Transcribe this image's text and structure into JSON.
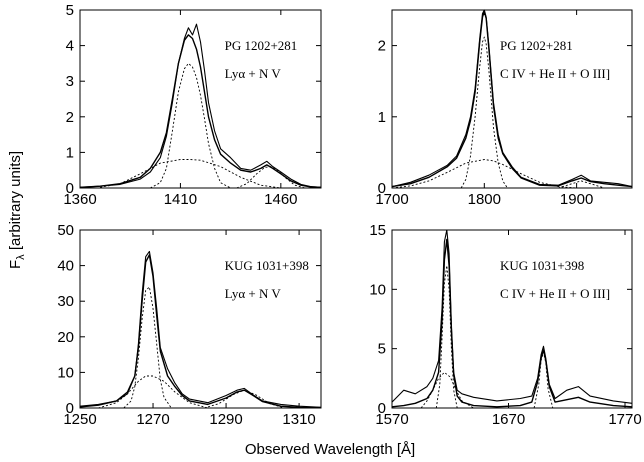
{
  "figure": {
    "ylabel_main": "F",
    "ylabel_sub": "λ",
    "ylabel_rest": " [arbitrary units]",
    "xlabel": "Observed Wavelength [Å]"
  },
  "chart_data": [
    {
      "type": "line",
      "title": "",
      "annotations": [
        "PG 1202+281",
        "Lyα + N V"
      ],
      "xlim": [
        1360,
        1480
      ],
      "ylim": [
        0,
        5
      ],
      "xticks": [
        1360,
        1410,
        1460
      ],
      "yticks": [
        0,
        1,
        2,
        3,
        4,
        5
      ],
      "series": [
        {
          "style": "observed",
          "x": [
            1360,
            1370,
            1380,
            1390,
            1395,
            1400,
            1403,
            1406,
            1409,
            1412,
            1414,
            1416,
            1418,
            1420,
            1422,
            1424,
            1427,
            1430,
            1435,
            1440,
            1445,
            1450,
            1453,
            1456,
            1460,
            1465,
            1470,
            1475,
            1480
          ],
          "y": [
            0.02,
            0.05,
            0.1,
            0.25,
            0.45,
            0.85,
            1.45,
            2.4,
            3.5,
            4.2,
            4.5,
            4.3,
            4.6,
            4.1,
            3.3,
            2.4,
            1.6,
            1.1,
            0.85,
            0.55,
            0.5,
            0.65,
            0.75,
            0.6,
            0.45,
            0.25,
            0.1,
            0.04,
            0.02
          ]
        },
        {
          "style": "fit-total",
          "x": [
            1360,
            1370,
            1380,
            1390,
            1395,
            1400,
            1403,
            1406,
            1409,
            1412,
            1414,
            1416,
            1418,
            1420,
            1422,
            1424,
            1427,
            1430,
            1435,
            1440,
            1445,
            1450,
            1453,
            1456,
            1460,
            1465,
            1470,
            1475,
            1480
          ],
          "y": [
            0.02,
            0.05,
            0.12,
            0.3,
            0.55,
            1.0,
            1.55,
            2.5,
            3.5,
            4.15,
            4.3,
            4.2,
            3.9,
            3.4,
            2.7,
            2.0,
            1.35,
            0.95,
            0.7,
            0.5,
            0.45,
            0.55,
            0.65,
            0.55,
            0.4,
            0.2,
            0.08,
            0.03,
            0.02
          ]
        },
        {
          "style": "component-narrow",
          "x": [
            1395,
            1400,
            1403,
            1406,
            1409,
            1412,
            1414,
            1416,
            1418,
            1420,
            1422,
            1424,
            1427,
            1430,
            1435
          ],
          "y": [
            0.0,
            0.15,
            0.55,
            1.6,
            2.7,
            3.35,
            3.5,
            3.4,
            3.1,
            2.6,
            1.95,
            1.25,
            0.55,
            0.15,
            0.0
          ]
        },
        {
          "style": "component-broad",
          "x": [
            1370,
            1380,
            1390,
            1400,
            1410,
            1415,
            1420,
            1430,
            1440,
            1450,
            1460
          ],
          "y": [
            0.02,
            0.12,
            0.4,
            0.7,
            0.8,
            0.8,
            0.78,
            0.6,
            0.3,
            0.08,
            0.0
          ]
        },
        {
          "style": "component-nv",
          "x": [
            1438,
            1443,
            1448,
            1452,
            1455,
            1458,
            1462,
            1467,
            1472
          ],
          "y": [
            0.0,
            0.12,
            0.4,
            0.58,
            0.6,
            0.52,
            0.3,
            0.08,
            0.0
          ]
        }
      ]
    },
    {
      "type": "line",
      "title": "",
      "annotations": [
        "PG 1202+281",
        "C IV + He II + O III]"
      ],
      "xlim": [
        1700,
        1960
      ],
      "ylim": [
        0,
        2.5
      ],
      "xticks": [
        1700,
        1800,
        1900
      ],
      "yticks": [
        0,
        1,
        2
      ],
      "series": [
        {
          "style": "observed",
          "x": [
            1700,
            1720,
            1740,
            1760,
            1770,
            1780,
            1785,
            1790,
            1795,
            1798,
            1800,
            1802,
            1805,
            1810,
            1815,
            1820,
            1830,
            1840,
            1860,
            1880,
            1895,
            1905,
            1915,
            1930,
            1945,
            1960
          ],
          "y": [
            0.02,
            0.08,
            0.18,
            0.32,
            0.45,
            0.75,
            1.0,
            1.4,
            2.1,
            2.45,
            2.5,
            2.4,
            2.0,
            1.2,
            0.75,
            0.5,
            0.3,
            0.15,
            0.05,
            0.04,
            0.12,
            0.18,
            0.1,
            0.08,
            0.06,
            0.02
          ]
        },
        {
          "style": "fit-total",
          "x": [
            1700,
            1720,
            1740,
            1760,
            1770,
            1780,
            1785,
            1790,
            1795,
            1798,
            1800,
            1802,
            1805,
            1810,
            1815,
            1820,
            1830,
            1840,
            1860,
            1880,
            1895,
            1905,
            1915,
            1930,
            1945,
            1960
          ],
          "y": [
            0.02,
            0.06,
            0.15,
            0.3,
            0.42,
            0.7,
            0.95,
            1.35,
            2.05,
            2.4,
            2.48,
            2.38,
            1.95,
            1.15,
            0.7,
            0.48,
            0.28,
            0.14,
            0.04,
            0.03,
            0.1,
            0.14,
            0.09,
            0.06,
            0.04,
            0.02
          ]
        },
        {
          "style": "component-narrow",
          "x": [
            1775,
            1780,
            1785,
            1790,
            1795,
            1798,
            1800,
            1802,
            1805,
            1810,
            1815,
            1820,
            1825
          ],
          "y": [
            0.0,
            0.12,
            0.45,
            1.0,
            1.7,
            2.05,
            2.12,
            2.02,
            1.65,
            0.85,
            0.35,
            0.1,
            0.0
          ]
        },
        {
          "style": "component-broad",
          "x": [
            1700,
            1720,
            1740,
            1760,
            1780,
            1800,
            1810,
            1820,
            1840,
            1860,
            1880,
            1900
          ],
          "y": [
            0.0,
            0.03,
            0.1,
            0.22,
            0.35,
            0.4,
            0.38,
            0.33,
            0.2,
            0.08,
            0.02,
            0.0
          ]
        },
        {
          "style": "component-heii",
          "x": [
            1880,
            1895,
            1905,
            1915,
            1930
          ],
          "y": [
            0.0,
            0.06,
            0.1,
            0.06,
            0.0
          ]
        }
      ]
    },
    {
      "type": "line",
      "title": "",
      "annotations": [
        "KUG 1031+398",
        "Lyα + N V"
      ],
      "xlim": [
        1250,
        1316
      ],
      "ylim": [
        0,
        50
      ],
      "xticks": [
        1250,
        1270,
        1290,
        1310
      ],
      "yticks": [
        0,
        10,
        20,
        30,
        40,
        50
      ],
      "series": [
        {
          "style": "observed",
          "x": [
            1250,
            1255,
            1260,
            1263,
            1265,
            1266,
            1267,
            1268,
            1269,
            1270,
            1271,
            1272,
            1274,
            1276,
            1278,
            1280,
            1285,
            1290,
            1293,
            1295,
            1297,
            1300,
            1305,
            1310,
            1316
          ],
          "y": [
            0.5,
            1.0,
            2.0,
            4.0,
            9.0,
            18.0,
            32.0,
            42.5,
            44.0,
            38.0,
            28.0,
            17.0,
            11.0,
            7.0,
            4.0,
            2.5,
            1.5,
            3.5,
            5.0,
            5.5,
            4.0,
            2.0,
            1.0,
            0.5,
            0.2
          ]
        },
        {
          "style": "fit-total",
          "x": [
            1250,
            1255,
            1260,
            1263,
            1265,
            1266,
            1267,
            1268,
            1269,
            1270,
            1271,
            1272,
            1274,
            1276,
            1278,
            1280,
            1285,
            1290,
            1293,
            1295,
            1297,
            1300,
            1305,
            1310,
            1316
          ],
          "y": [
            0.3,
            0.8,
            2.0,
            4.5,
            9.0,
            17.0,
            30.0,
            41.0,
            43.0,
            37.0,
            26.0,
            16.0,
            9.0,
            6.0,
            3.5,
            2.0,
            1.0,
            2.8,
            4.5,
            5.0,
            3.8,
            1.8,
            0.5,
            0.2,
            0.1
          ]
        },
        {
          "style": "component-narrow",
          "x": [
            1262,
            1264,
            1265,
            1266,
            1267,
            1268,
            1269,
            1270,
            1271,
            1272,
            1273,
            1275
          ],
          "y": [
            0.0,
            2.0,
            6.0,
            14.0,
            25.0,
            33.0,
            34.0,
            28.0,
            18.0,
            8.0,
            3.0,
            0.0
          ]
        },
        {
          "style": "component-broad",
          "x": [
            1255,
            1260,
            1263,
            1266,
            1268,
            1270,
            1273,
            1276,
            1280,
            1285
          ],
          "y": [
            0.0,
            1.5,
            4.0,
            7.5,
            9.0,
            9.0,
            7.5,
            4.5,
            1.5,
            0.0
          ]
        },
        {
          "style": "component-nv",
          "x": [
            1284,
            1288,
            1292,
            1295,
            1298,
            1302,
            1306
          ],
          "y": [
            0.0,
            1.2,
            3.8,
            5.0,
            3.8,
            1.2,
            0.0
          ]
        }
      ]
    },
    {
      "type": "line",
      "title": "",
      "annotations": [
        "KUG 1031+398",
        "C IV + He II + O III]"
      ],
      "xlim": [
        1570,
        1776
      ],
      "ylim": [
        0,
        15
      ],
      "xticks": [
        1570,
        1670,
        1770
      ],
      "yticks": [
        0,
        5,
        10,
        15
      ],
      "series": [
        {
          "style": "observed",
          "x": [
            1570,
            1580,
            1590,
            1600,
            1605,
            1610,
            1613,
            1615,
            1617,
            1619,
            1621,
            1623,
            1626,
            1630,
            1640,
            1660,
            1680,
            1690,
            1695,
            1698,
            1700,
            1702,
            1705,
            1710,
            1720,
            1730,
            1740,
            1760,
            1776
          ],
          "y": [
            0.5,
            1.5,
            1.2,
            1.8,
            2.5,
            4.0,
            8.5,
            14.0,
            15.0,
            13.0,
            7.0,
            3.0,
            1.5,
            1.2,
            0.9,
            0.6,
            0.8,
            1.0,
            2.5,
            4.5,
            5.2,
            4.2,
            2.0,
            0.8,
            1.5,
            1.8,
            1.0,
            0.6,
            0.4
          ]
        },
        {
          "style": "fit-total",
          "x": [
            1570,
            1580,
            1590,
            1600,
            1605,
            1610,
            1613,
            1615,
            1617,
            1619,
            1621,
            1623,
            1626,
            1630,
            1640,
            1660,
            1680,
            1690,
            1695,
            1698,
            1700,
            1702,
            1705,
            1710,
            1720,
            1730,
            1740,
            1760,
            1776
          ],
          "y": [
            0.1,
            0.2,
            0.4,
            0.8,
            1.5,
            3.0,
            7.5,
            12.5,
            14.2,
            12.0,
            6.5,
            2.8,
            1.0,
            0.5,
            0.2,
            0.1,
            0.2,
            0.5,
            2.2,
            4.2,
            4.9,
            4.0,
            1.8,
            0.5,
            0.7,
            0.9,
            0.5,
            0.2,
            0.1
          ]
        },
        {
          "style": "component-narrow",
          "x": [
            1608,
            1611,
            1613,
            1615,
            1617,
            1619,
            1621,
            1623,
            1626
          ],
          "y": [
            0.0,
            2.0,
            6.0,
            10.5,
            12.0,
            10.0,
            5.0,
            1.5,
            0.0
          ]
        },
        {
          "style": "component-broad",
          "x": [
            1595,
            1600,
            1605,
            1610,
            1615,
            1620,
            1625,
            1630,
            1640
          ],
          "y": [
            0.0,
            0.6,
            1.5,
            2.5,
            3.0,
            2.6,
            1.5,
            0.6,
            0.0
          ]
        },
        {
          "style": "component-heii",
          "x": [
            1692,
            1696,
            1698,
            1700,
            1702,
            1704,
            1708
          ],
          "y": [
            0.0,
            2.0,
            4.0,
            4.7,
            3.8,
            1.6,
            0.0
          ]
        }
      ]
    }
  ]
}
